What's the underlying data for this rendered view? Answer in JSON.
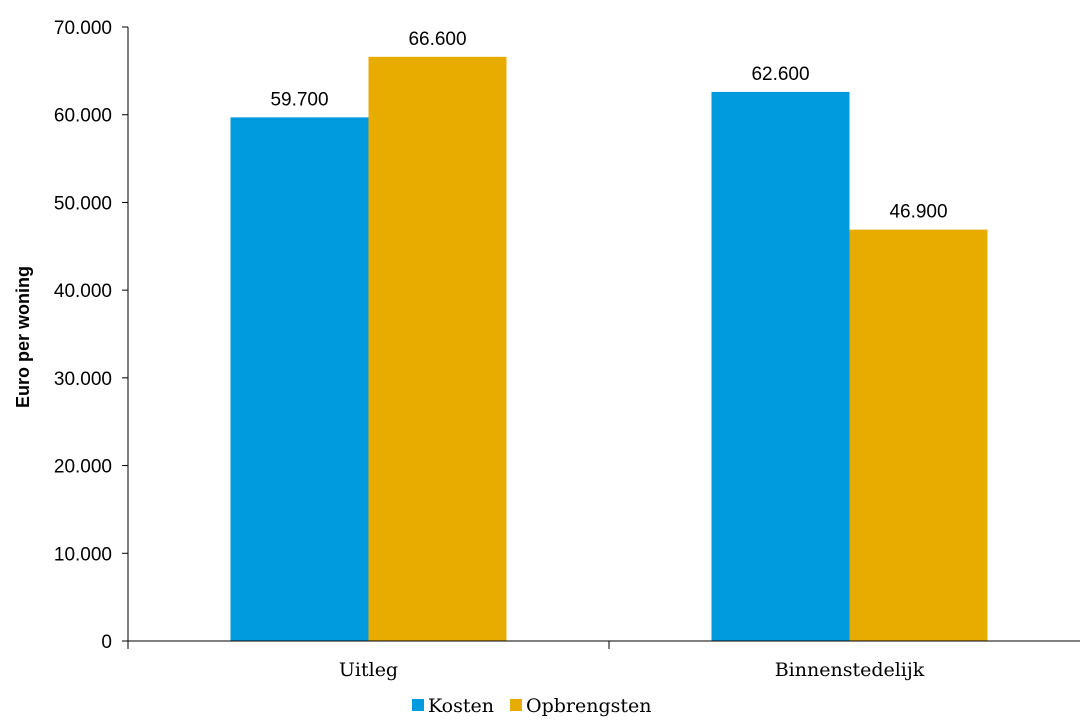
{
  "chart_data": {
    "type": "bar",
    "title": "",
    "xlabel": "",
    "ylabel": "Euro per woning",
    "categories": [
      "Uitleg",
      "Binnenstedelijk"
    ],
    "series": [
      {
        "name": "Kosten",
        "color": "#009ADE",
        "values": [
          59700,
          62600
        ],
        "labels": [
          "59.700",
          "62.600"
        ]
      },
      {
        "name": "Opbrengsten",
        "color": "#E8AC00",
        "values": [
          66600,
          46900
        ],
        "labels": [
          "66.600",
          "46.900"
        ]
      }
    ],
    "ylim": [
      0,
      70000
    ],
    "yticks": [
      0,
      10000,
      20000,
      30000,
      40000,
      50000,
      60000,
      70000
    ],
    "ytick_labels": [
      "0",
      "10.000",
      "20.000",
      "30.000",
      "40.000",
      "50.000",
      "60.000",
      "70.000"
    ],
    "grid": false,
    "legend_position": "bottom"
  }
}
